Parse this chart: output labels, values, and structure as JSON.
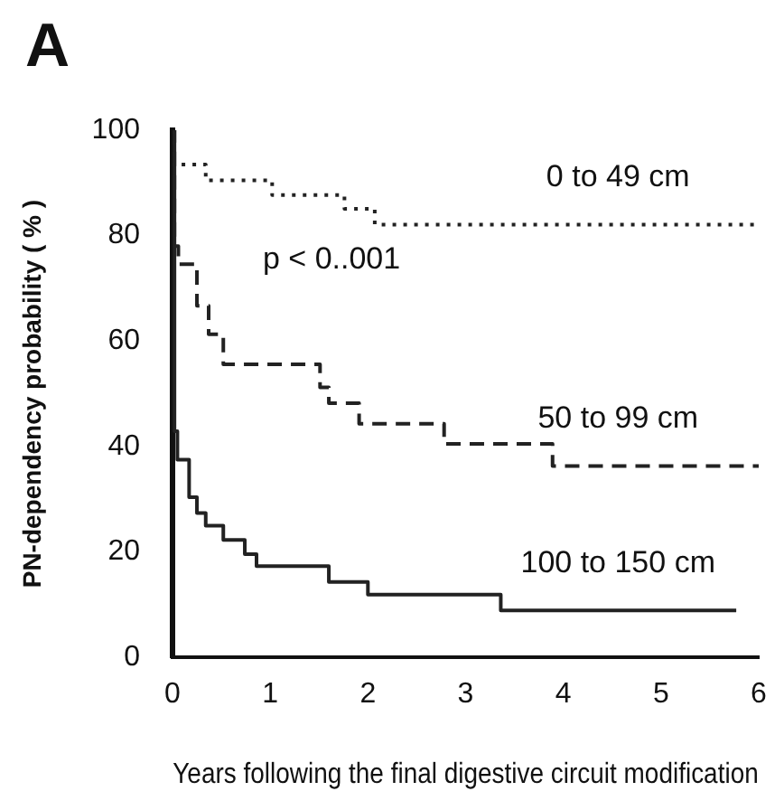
{
  "chart_data": {
    "type": "step",
    "title": "A",
    "xlabel": "Years following the final digestive circuit modification",
    "ylabel": "PN-dependency probability ( % )",
    "xlim": [
      0,
      6
    ],
    "ylim": [
      0,
      100
    ],
    "xticks": [
      0,
      1,
      2,
      3,
      4,
      5,
      6
    ],
    "yticks": [
      0,
      20,
      40,
      60,
      80,
      100
    ],
    "grid": false,
    "legend": false,
    "marker": "none",
    "series": [
      {
        "name": "0 to 49 cm",
        "color": "#222222",
        "line_style": "dotted",
        "x": [
          0,
          0,
          0.34,
          1.02,
          1.76,
          2.07,
          6
        ],
        "values": [
          100,
          93.5,
          90.5,
          87.7,
          85.1,
          82.1,
          82.1
        ]
      },
      {
        "name": "50 to 99 cm",
        "color": "#222222",
        "line_style": "dashed",
        "x": [
          0,
          0.02,
          0.06,
          0.25,
          0.37,
          0.52,
          1.51,
          1.6,
          1.91,
          2.78,
          3.89,
          6
        ],
        "values": [
          100,
          78,
          74.6,
          66.7,
          61.3,
          55.6,
          51.2,
          48.2,
          44.3,
          40.5,
          36.3,
          36.3
        ]
      },
      {
        "name": "100 to 150 cm",
        "color": "#222222",
        "line_style": "solid",
        "x": [
          0,
          0.02,
          0.05,
          0.17,
          0.25,
          0.34,
          0.52,
          0.74,
          0.86,
          1.6,
          2,
          3.36,
          5.77
        ],
        "values": [
          100,
          42.9,
          37.5,
          30.4,
          27.4,
          25,
          22.3,
          19.6,
          17.3,
          14.3,
          11.9,
          8.9,
          8.9
        ]
      }
    ],
    "annotations": [
      "p < 0..001"
    ]
  }
}
